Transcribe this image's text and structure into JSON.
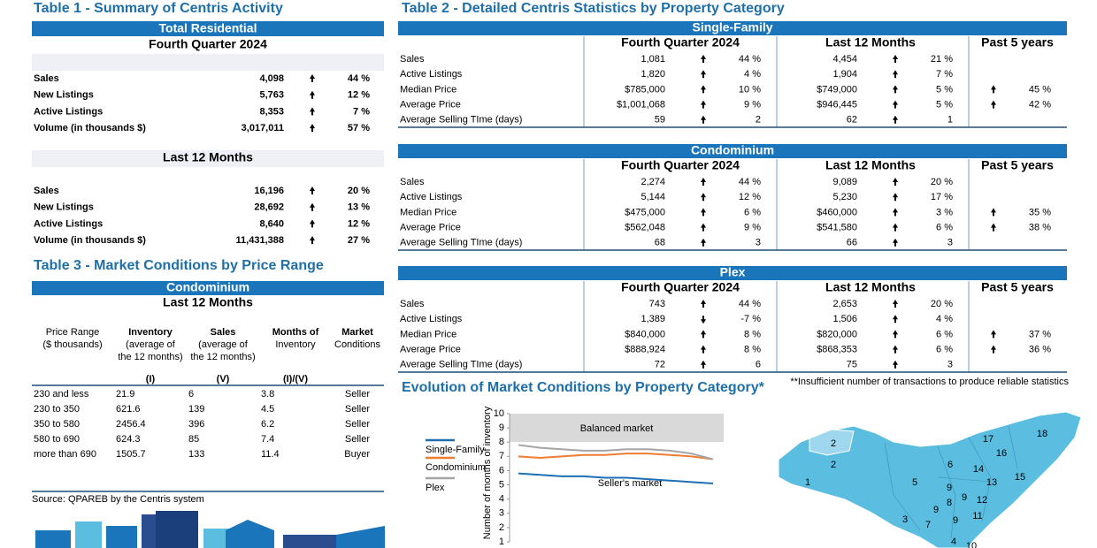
{
  "table1": {
    "title": "Table 1 - Summary of Centris Activity",
    "header": "Total Residential",
    "sections": [
      {
        "period": "Fourth Quarter 2024",
        "rows": [
          [
            "Sales",
            "4,098",
            "44 %"
          ],
          [
            "New Listings",
            "5,763",
            "12 %"
          ],
          [
            "Active Listings",
            "8,353",
            "7 %"
          ],
          [
            "Volume (in thousands $)",
            "3,017,011",
            "57 %"
          ]
        ]
      },
      {
        "period": "Last 12 Months",
        "rows": [
          [
            "Sales",
            "16,196",
            "20 %"
          ],
          [
            "New Listings",
            "28,692",
            "13 %"
          ],
          [
            "Active Listings",
            "8,640",
            "12 %"
          ],
          [
            "Volume (in thousands $)",
            "11,431,388",
            "27 %"
          ]
        ]
      }
    ]
  },
  "table2": {
    "title": "Table 2 - Detailed Centris Statistics by Property Category",
    "blocks": [
      {
        "category": "Single-Family",
        "columns": [
          "Fourth Quarter 2024",
          "Last 12 Months",
          "Past 5 years"
        ],
        "rows": [
          [
            "Sales",
            "1,081",
            "44 %",
            "4,454",
            "21 %",
            null
          ],
          [
            "Active Listings",
            "1,820",
            "4 %",
            "1,904",
            "7 %",
            null
          ],
          [
            "Median Price",
            "$785,000",
            "10 %",
            "$749,000",
            "5 %",
            "45 %"
          ],
          [
            "Average Price",
            "$1,001,068",
            "9 %",
            "$946,445",
            "5 %",
            "42 %"
          ],
          [
            "Average Selling TIme (days)",
            "59",
            "2",
            "62",
            "1",
            null
          ]
        ]
      },
      {
        "category": "Condominium",
        "columns": [
          "Fourth Quarter 2024",
          "Last 12 Months",
          "Past 5 years"
        ],
        "rows": [
          [
            "Sales",
            "2,274",
            "44 %",
            "9,089",
            "20 %",
            null
          ],
          [
            "Active Listings",
            "5,144",
            "12 %",
            "5,230",
            "17 %",
            null
          ],
          [
            "Median Price",
            "$475,000",
            "6 %",
            "$460,000",
            "3 %",
            "35 %"
          ],
          [
            "Average Price",
            "$562,048",
            "9 %",
            "$541,580",
            "6 %",
            "38 %"
          ],
          [
            "Average Selling TIme (days)",
            "68",
            "3",
            "66",
            "3",
            null
          ]
        ]
      },
      {
        "category": "Plex",
        "columns": [
          "Fourth Quarter 2024",
          "Last 12 Months",
          "Past 5 years"
        ],
        "rows": [
          [
            "Sales",
            "743",
            "44 %",
            "2,653",
            "20 %",
            null
          ],
          [
            "Active Listings",
            "1,389",
            "-7 %",
            "1,506",
            "4 %",
            null
          ],
          [
            "Median Price",
            "$840,000",
            "8 %",
            "$820,000",
            "6 %",
            "37 %"
          ],
          [
            "Average Price",
            "$888,924",
            "8 %",
            "$868,353",
            "6 %",
            "36 %"
          ],
          [
            "Average Selling TIme (days)",
            "72",
            "6",
            "75",
            "3",
            null
          ]
        ]
      }
    ],
    "footnote": "**Insufficient number of transactions to produce reliable statistics"
  },
  "table3": {
    "title": "Table 3 - Market Conditions by Price Range",
    "category": "Condominium",
    "period": "Last 12 Months",
    "columns": [
      [
        "Price Range",
        "($ thousands)"
      ],
      [
        "Inventory",
        "(average of",
        "the 12 months)"
      ],
      [
        "Sales",
        "(average of",
        "the 12 months)"
      ],
      [
        "Months of",
        "Inventory"
      ],
      [
        "Market",
        "Conditions"
      ]
    ],
    "subcolumns": [
      null,
      "(I)",
      "(V)",
      "(I)/(V)",
      null
    ],
    "rows": [
      [
        "230 and less",
        "21.9",
        "6",
        "3.8",
        "Seller"
      ],
      [
        "230 to 350",
        "621.6",
        "139",
        "4.5",
        "Seller"
      ],
      [
        "350 to 580",
        "2456.4",
        "396",
        "6.2",
        "Seller"
      ],
      [
        "580 to 690",
        "624.3",
        "85",
        "7.4",
        "Seller"
      ],
      [
        "more than 690",
        "1505.7",
        "133",
        "11.4",
        "Buyer"
      ]
    ],
    "source": "Source: QPAREB by the Centris system"
  },
  "chart_data": {
    "type": "line",
    "title": "Evolution of Market Conditions by Property Category*",
    "y_label": "Number of months of inventory",
    "categories": [
      null,
      null,
      null,
      null,
      null,
      null,
      null,
      null,
      null,
      null
    ],
    "series": [
      {
        "name": "Single-Family",
        "color": "#1f6fb5",
        "values": [
          5.8,
          5.7,
          5.6,
          5.6,
          5.5,
          5.5,
          5.4,
          5.3,
          5.2,
          5.1
        ]
      },
      {
        "name": "Condominium",
        "color": "#ed7d31",
        "values": [
          7.0,
          6.9,
          7.0,
          7.1,
          7.1,
          7.2,
          7.2,
          7.1,
          7.0,
          6.8
        ]
      },
      {
        "name": "Plex",
        "color": "#a5a5a5",
        "values": [
          7.8,
          7.6,
          7.5,
          7.4,
          7.4,
          7.5,
          7.5,
          7.4,
          7.2,
          6.8
        ]
      }
    ],
    "ylim": [
      1,
      10
    ],
    "yticks": [
      1,
      2,
      3,
      4,
      5,
      6,
      7,
      8,
      9,
      10
    ],
    "bands": [
      {
        "label": "Balanced market",
        "from": 8,
        "to": 10,
        "color": "#d9d9d9"
      },
      {
        "label": "Seller's market",
        "from": 1,
        "to": 8,
        "color": "#ffffff"
      }
    ]
  },
  "map_labels": [
    "2",
    "2",
    "1",
    "5",
    "3",
    "7",
    "9",
    "9",
    "8",
    "9",
    "6",
    "14",
    "13",
    "12",
    "11",
    "15",
    "16",
    "17",
    "18",
    "4",
    "10",
    "9"
  ]
}
